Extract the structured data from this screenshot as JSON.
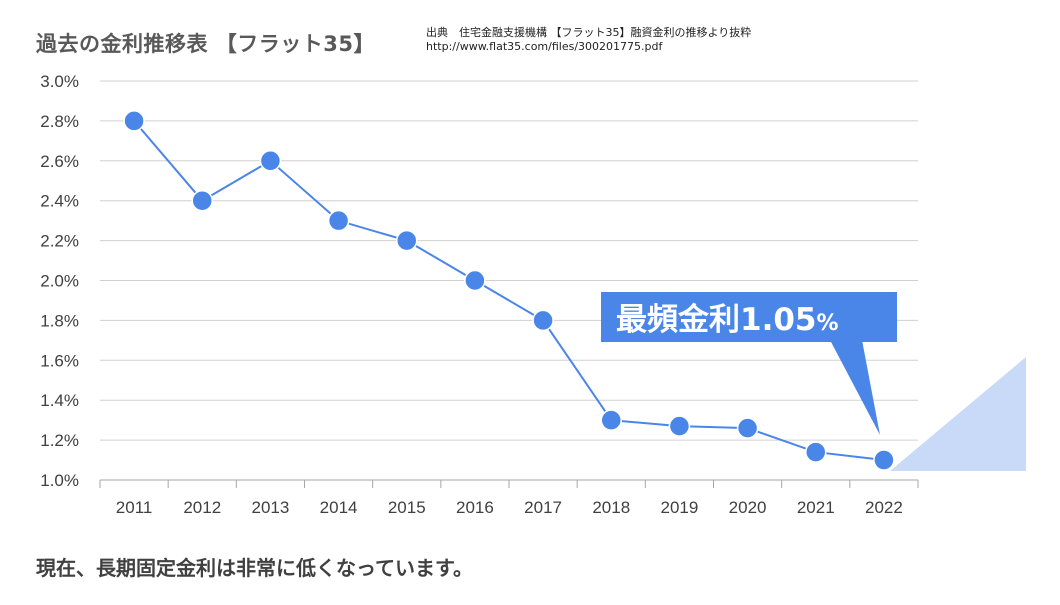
{
  "title": "過去の金利推移表 【フラット35】",
  "source": {
    "line1": "出典　住宅金融支援機構 【フラット35】融資金利の推移より抜粋",
    "line2": "http://www.flat35.com/files/300201775.pdf"
  },
  "footer": "現在、長期固定金利は非常に低くなっています。",
  "callout": {
    "main": "最頻金利1.05",
    "unit": "%",
    "box_color": "#4a86e8"
  },
  "chart_data": {
    "type": "line",
    "x": [
      "2011",
      "2012",
      "2013",
      "2014",
      "2015",
      "2016",
      "2017",
      "2018",
      "2019",
      "2020",
      "2021",
      "2022"
    ],
    "series": [
      {
        "values": [
          2.8,
          2.4,
          2.6,
          2.3,
          2.2,
          2.0,
          1.8,
          1.3,
          1.27,
          1.26,
          1.14,
          1.1
        ],
        "color": "#4a86e8"
      }
    ],
    "ylim": [
      1.0,
      3.0
    ],
    "yticks": [
      "3.0%",
      "2.8%",
      "2.6%",
      "2.4%",
      "2.2%",
      "2.0%",
      "1.8%",
      "1.6%",
      "1.4%",
      "1.2%",
      "1.0%"
    ],
    "grid": true,
    "legend": "none"
  }
}
